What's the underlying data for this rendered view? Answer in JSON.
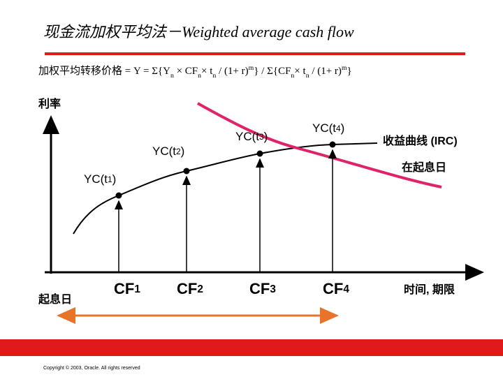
{
  "header": {
    "title_cn": "现金流加权平均法－",
    "title_en": "Weighted average cash flow"
  },
  "formula": [
    {
      "text": "加权平均转移价格 = "
    },
    {
      "text": "Y = Σ{Y"
    },
    {
      "text": "n",
      "shift": "sub"
    },
    {
      "text": " × CF"
    },
    {
      "text": "n",
      "shift": "sub"
    },
    {
      "text": "× t"
    },
    {
      "text": "n",
      "shift": "sub"
    },
    {
      "text": " / (1+ r)"
    },
    {
      "text": "m",
      "shift": "sup"
    },
    {
      "text": "} / Σ{CF"
    },
    {
      "text": "n",
      "shift": "sub"
    },
    {
      "text": "× t"
    },
    {
      "text": "n",
      "shift": "sub"
    },
    {
      "text": " / (1+ r)"
    },
    {
      "text": "m",
      "shift": "sup"
    },
    {
      "text": "}"
    }
  ],
  "axes": {
    "y_label": "利率",
    "x_label": "时间, 期限",
    "origin_label": "起息日"
  },
  "curve": {
    "name": "收益曲线 (IRC)",
    "note": "在起息日"
  },
  "points": [
    [
      {
        "text": "YC(t"
      },
      {
        "text": "1",
        "shift": "small"
      },
      {
        "text": ")"
      }
    ],
    [
      {
        "text": "YC(t"
      },
      {
        "text": "2",
        "shift": "small"
      },
      {
        "text": ")"
      }
    ],
    [
      {
        "text": "YC(t"
      },
      {
        "text": "3",
        "shift": "small"
      },
      {
        "text": ")"
      }
    ],
    [
      {
        "text": "YC(t"
      },
      {
        "text": "4",
        "shift": "small"
      },
      {
        "text": ")"
      }
    ]
  ],
  "cash_flows": [
    [
      {
        "text": "CF"
      },
      {
        "text": "1",
        "shift": "small"
      }
    ],
    [
      {
        "text": "CF"
      },
      {
        "text": "2",
        "shift": "small"
      }
    ],
    [
      {
        "text": "CF"
      },
      {
        "text": "3",
        "shift": "small"
      }
    ],
    [
      {
        "text": "CF"
      },
      {
        "text": "4",
        "shift": "small"
      }
    ]
  ],
  "footer": {
    "copyright": "Copyright © 2003, Oracle.  All rights reserved"
  }
}
